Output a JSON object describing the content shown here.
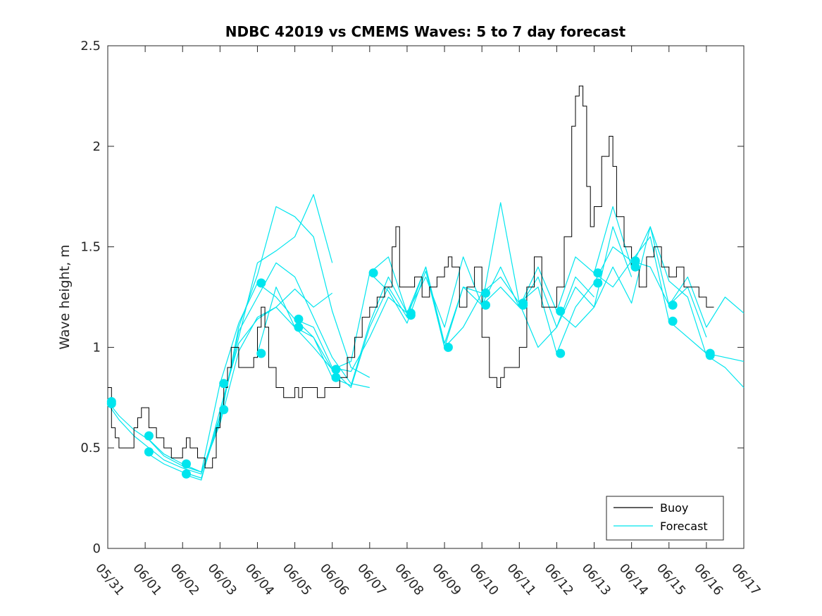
{
  "chart_data": {
    "type": "line",
    "title": "NDBC 42019 vs CMEMS Waves: 5 to 7 day forecast",
    "xlabel": "",
    "ylabel": "Wave height, m",
    "x_ticks": [
      "05/31",
      "06/01",
      "06/02",
      "06/03",
      "06/04",
      "06/05",
      "06/06",
      "06/07",
      "06/08",
      "06/09",
      "06/10",
      "06/11",
      "06/12",
      "06/13",
      "06/14",
      "06/15",
      "06/16",
      "06/17"
    ],
    "y_ticks": [
      "0",
      "0.5",
      "1",
      "1.5",
      "2",
      "2.5"
    ],
    "xlim_days": [
      0,
      17
    ],
    "ylim": [
      0,
      2.5
    ],
    "grid": false,
    "legend": {
      "location": "bottom-right",
      "entries": [
        {
          "name": "Buoy",
          "color": "#000000"
        },
        {
          "name": "Forecast",
          "color": "#00e5ee"
        }
      ]
    },
    "colors": {
      "buoy": "#000000",
      "forecast": "#00e5ee",
      "marker": "#00e5ee"
    },
    "series": [
      {
        "name": "Buoy",
        "x": [
          0,
          0.1,
          0.2,
          0.3,
          0.5,
          0.7,
          0.8,
          0.9,
          1.0,
          1.1,
          1.2,
          1.3,
          1.5,
          1.7,
          1.9,
          2.0,
          2.1,
          2.2,
          2.4,
          2.6,
          2.8,
          2.9,
          3.0,
          3.1,
          3.2,
          3.3,
          3.5,
          3.7,
          3.9,
          4.0,
          4.1,
          4.2,
          4.3,
          4.5,
          4.7,
          4.9,
          5.0,
          5.1,
          5.2,
          5.4,
          5.6,
          5.8,
          6.0,
          6.2,
          6.4,
          6.6,
          6.8,
          7.0,
          7.2,
          7.4,
          7.6,
          7.7,
          7.8,
          8.0,
          8.2,
          8.4,
          8.6,
          8.8,
          9.0,
          9.1,
          9.2,
          9.4,
          9.6,
          9.8,
          10.0,
          10.2,
          10.4,
          10.5,
          10.6,
          10.8,
          11.0,
          11.2,
          11.4,
          11.6,
          11.8,
          12.0,
          12.2,
          12.4,
          12.5,
          12.6,
          12.7,
          12.8,
          12.9,
          13.0,
          13.2,
          13.4,
          13.5,
          13.6,
          13.8,
          14.0,
          14.2,
          14.4,
          14.6,
          14.8,
          15.0,
          15.2,
          15.4,
          15.6,
          15.8,
          16.0,
          16.2
        ],
        "y": [
          0.8,
          0.6,
          0.55,
          0.5,
          0.5,
          0.6,
          0.65,
          0.7,
          0.7,
          0.6,
          0.6,
          0.55,
          0.5,
          0.45,
          0.45,
          0.5,
          0.55,
          0.5,
          0.45,
          0.4,
          0.45,
          0.6,
          0.7,
          0.8,
          0.9,
          1.0,
          0.9,
          0.9,
          0.95,
          1.1,
          1.2,
          1.1,
          0.9,
          0.8,
          0.75,
          0.75,
          0.8,
          0.75,
          0.8,
          0.8,
          0.75,
          0.8,
          0.8,
          0.85,
          0.95,
          1.05,
          1.15,
          1.2,
          1.25,
          1.3,
          1.5,
          1.6,
          1.3,
          1.3,
          1.35,
          1.25,
          1.3,
          1.35,
          1.4,
          1.45,
          1.4,
          1.2,
          1.3,
          1.4,
          1.05,
          0.85,
          0.8,
          0.85,
          0.9,
          0.9,
          1.0,
          1.3,
          1.45,
          1.2,
          1.2,
          1.3,
          1.55,
          2.1,
          2.25,
          2.3,
          2.2,
          1.8,
          1.6,
          1.7,
          1.95,
          2.05,
          1.9,
          1.65,
          1.5,
          1.4,
          1.3,
          1.45,
          1.5,
          1.4,
          1.35,
          1.4,
          1.3,
          1.3,
          1.25,
          1.2,
          1.2
        ]
      },
      {
        "name": "Forecast",
        "segments": [
          {
            "x": [
              0,
              0.3,
              0.7,
              1.1,
              1.5,
              2.0,
              2.5,
              3.0,
              3.5,
              4.0,
              4.5,
              5.0,
              5.5,
              6.0
            ],
            "y": [
              0.73,
              0.66,
              0.59,
              0.54,
              0.46,
              0.41,
              0.38,
              0.62,
              0.98,
              1.15,
              1.2,
              1.29,
              1.2,
              1.27
            ]
          },
          {
            "x": [
              0,
              0.3,
              0.7,
              1.1,
              1.5,
              2.0,
              2.5,
              3.0,
              3.5,
              4.0,
              4.5,
              5.0,
              5.5,
              6.0
            ],
            "y": [
              0.72,
              0.64,
              0.56,
              0.5,
              0.44,
              0.4,
              0.37,
              0.66,
              1.05,
              1.42,
              1.48,
              1.55,
              1.76,
              1.42
            ]
          },
          {
            "x": [
              1.0,
              1.5,
              2.0,
              2.5,
              3.0,
              3.5,
              4.0,
              4.5,
              5.0,
              5.5,
              6.0,
              6.5,
              7.0
            ],
            "y": [
              0.56,
              0.47,
              0.42,
              0.38,
              0.63,
              1.1,
              1.36,
              1.7,
              1.65,
              1.55,
              1.18,
              0.9,
              0.85
            ]
          },
          {
            "x": [
              1.0,
              1.5,
              2.0,
              2.5,
              3.0,
              3.5,
              4.0,
              4.5,
              5.0,
              5.5,
              6.0,
              6.5,
              7.0
            ],
            "y": [
              0.48,
              0.42,
              0.38,
              0.35,
              0.65,
              1.08,
              1.25,
              1.42,
              1.35,
              1.15,
              0.95,
              0.82,
              0.8
            ]
          },
          {
            "x": [
              2.0,
              2.5,
              3.0,
              3.5,
              4.0,
              4.5,
              5.0,
              5.5,
              6.0,
              6.5,
              7.0,
              7.5,
              8.0
            ],
            "y": [
              0.42,
              0.38,
              0.82,
              1.12,
              1.32,
              1.25,
              1.14,
              1.1,
              0.9,
              0.88,
              1.05,
              1.25,
              1.17
            ]
          },
          {
            "x": [
              2.0,
              2.5,
              3.0,
              3.5,
              4.0,
              4.5,
              5.0,
              5.5,
              6.0,
              6.5,
              7.0,
              7.5,
              8.0
            ],
            "y": [
              0.37,
              0.34,
              0.69,
              1.02,
              1.14,
              1.2,
              1.1,
              1.05,
              0.85,
              0.81,
              1.12,
              1.35,
              1.17
            ]
          },
          {
            "x": [
              4.0,
              4.5,
              5.0,
              5.5,
              6.0,
              6.5,
              7.0,
              7.5,
              8.0,
              8.5,
              9.0,
              9.5,
              10.0
            ],
            "y": [
              0.97,
              1.3,
              1.1,
              1.0,
              0.89,
              0.93,
              1.37,
              1.45,
              1.17,
              1.4,
              1.0,
              1.1,
              1.27
            ]
          },
          {
            "x": [
              5.0,
              5.5,
              6.0,
              6.5,
              7.0,
              7.5,
              8.0,
              8.5,
              9.0,
              9.5,
              10.0,
              10.5,
              11.0
            ],
            "y": [
              1.14,
              1.05,
              0.89,
              0.8,
              1.1,
              1.3,
              1.15,
              1.4,
              1.02,
              1.3,
              1.21,
              1.72,
              1.22
            ]
          },
          {
            "x": [
              7.0,
              7.5,
              8.0,
              8.5,
              9.0,
              9.5,
              10.0,
              10.5,
              11.0,
              11.5,
              12.0,
              12.5,
              13.0
            ],
            "y": [
              1.37,
              1.28,
              1.12,
              1.38,
              1.0,
              1.3,
              1.27,
              1.35,
              1.22,
              1.0,
              1.1,
              1.35,
              1.25
            ]
          },
          {
            "x": [
              8.0,
              8.5,
              9.0,
              9.5,
              10.0,
              10.5,
              11.0,
              11.5,
              12.0,
              12.5,
              13.0,
              13.5,
              14.0
            ],
            "y": [
              1.17,
              1.35,
              1.1,
              1.45,
              1.21,
              1.4,
              1.2,
              1.35,
              1.1,
              1.3,
              1.2,
              1.6,
              1.35
            ]
          },
          {
            "x": [
              10.0,
              10.5,
              11.0,
              11.5,
              12.0,
              12.5,
              13.0,
              13.5,
              14.0,
              14.5,
              15.0,
              15.5,
              16.0
            ],
            "y": [
              1.21,
              1.3,
              1.2,
              1.4,
              1.18,
              1.45,
              1.37,
              1.7,
              1.4,
              1.6,
              1.21,
              1.3,
              1.05
            ]
          },
          {
            "x": [
              11.0,
              11.5,
              12.0,
              12.5,
              13.0,
              13.5,
              14.0,
              14.5,
              15.0,
              15.5,
              16.0,
              16.5,
              17.0
            ],
            "y": [
              1.22,
              1.3,
              0.97,
              1.2,
              1.32,
              1.5,
              1.43,
              1.55,
              1.13,
              1.05,
              0.97,
              0.95,
              0.93
            ]
          },
          {
            "x": [
              12.0,
              12.5,
              13.0,
              13.5,
              14.0,
              14.5,
              15.0,
              15.5,
              16.0,
              16.5,
              17.0
            ],
            "y": [
              1.18,
              1.1,
              1.2,
              1.4,
              1.22,
              1.6,
              1.33,
              1.25,
              0.96,
              0.9,
              0.8
            ]
          },
          {
            "x": [
              13.0,
              13.5,
              14.0,
              14.5,
              15.0,
              15.5,
              16.0,
              16.5,
              17.0
            ],
            "y": [
              1.37,
              1.3,
              1.43,
              1.4,
              1.21,
              1.35,
              1.1,
              1.25,
              1.17
            ]
          }
        ]
      }
    ],
    "markers": [
      {
        "x": 0.1,
        "y": 0.73
      },
      {
        "x": 0.1,
        "y": 0.72
      },
      {
        "x": 1.1,
        "y": 0.56
      },
      {
        "x": 1.1,
        "y": 0.48
      },
      {
        "x": 2.1,
        "y": 0.42
      },
      {
        "x": 2.1,
        "y": 0.37
      },
      {
        "x": 3.1,
        "y": 0.82
      },
      {
        "x": 3.1,
        "y": 0.69
      },
      {
        "x": 4.1,
        "y": 1.32
      },
      {
        "x": 4.1,
        "y": 0.97
      },
      {
        "x": 5.1,
        "y": 1.14
      },
      {
        "x": 5.1,
        "y": 1.1
      },
      {
        "x": 6.1,
        "y": 0.89
      },
      {
        "x": 6.1,
        "y": 0.85
      },
      {
        "x": 7.1,
        "y": 1.37
      },
      {
        "x": 8.1,
        "y": 1.17
      },
      {
        "x": 8.1,
        "y": 1.16
      },
      {
        "x": 9.1,
        "y": 1.0
      },
      {
        "x": 10.1,
        "y": 1.27
      },
      {
        "x": 10.1,
        "y": 1.21
      },
      {
        "x": 11.1,
        "y": 1.22
      },
      {
        "x": 11.1,
        "y": 1.21
      },
      {
        "x": 12.1,
        "y": 1.18
      },
      {
        "x": 12.1,
        "y": 0.97
      },
      {
        "x": 13.1,
        "y": 1.37
      },
      {
        "x": 13.1,
        "y": 1.32
      },
      {
        "x": 14.1,
        "y": 1.43
      },
      {
        "x": 14.1,
        "y": 1.4
      },
      {
        "x": 15.1,
        "y": 1.21
      },
      {
        "x": 15.1,
        "y": 1.13
      },
      {
        "x": 16.1,
        "y": 0.97
      },
      {
        "x": 16.1,
        "y": 0.96
      }
    ]
  }
}
